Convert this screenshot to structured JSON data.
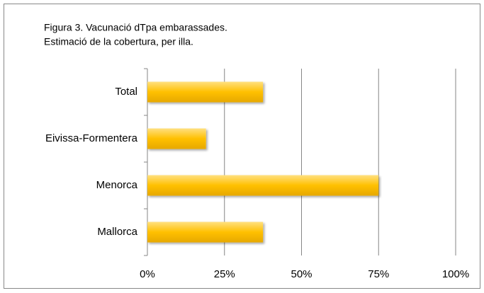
{
  "chart_data": {
    "type": "bar",
    "orientation": "horizontal",
    "title": "Figura 3. Vacunació dTpa embarassades.",
    "subtitle": "Estimació de la cobertura, per illa.",
    "categories": [
      "Total",
      "Eivissa-Formentera",
      "Menorca",
      "Mallorca"
    ],
    "values": [
      37.5,
      19,
      75,
      37.5
    ],
    "color": "#ffc000",
    "xlim": [
      0,
      100
    ],
    "xticks": [
      {
        "value": 0,
        "label": "0%"
      },
      {
        "value": 25,
        "label": "25%"
      },
      {
        "value": 50,
        "label": "50%"
      },
      {
        "value": 75,
        "label": "75%"
      },
      {
        "value": 100,
        "label": "100%"
      }
    ],
    "grid": true
  }
}
